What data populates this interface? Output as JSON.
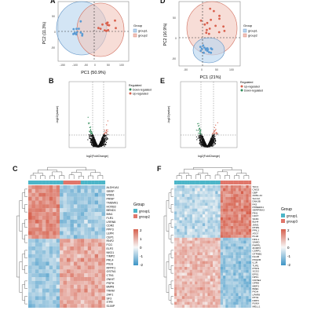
{
  "panels": {
    "a": {
      "letter": "A"
    },
    "b": {
      "letter": "B"
    },
    "c": {
      "letter": "C"
    },
    "d": {
      "letter": "D"
    },
    "e": {
      "letter": "E"
    },
    "f": {
      "letter": "F"
    }
  },
  "pca_left": {
    "xlabel": "PC1 (50.9%)",
    "ylabel": "PC2 (11.3%)",
    "x_ticks": [
      "-150",
      "-100",
      "-50",
      "0",
      "50",
      "100"
    ],
    "y_ticks": [
      "50",
      "0",
      "-50"
    ],
    "legend_title": "Group",
    "legend": [
      "group1",
      "group2"
    ]
  },
  "pca_right": {
    "xlabel": "PC1 (21%)",
    "ylabel": "PC2 (16.9%)",
    "x_ticks": [
      "-50",
      "0",
      "50",
      "100"
    ],
    "y_ticks": [
      "50",
      "0",
      "-50"
    ],
    "legend_title": "Group",
    "legend": [
      "group1",
      "group2"
    ]
  },
  "volcano_left": {
    "xlabel": "log2(FoldChange)",
    "ylabel": "-log10(pvalue)",
    "legend_title": "Regulated",
    "legend": [
      "Down-regulated",
      "Up-regulated"
    ]
  },
  "volcano_right": {
    "xlabel": "log2(FoldChange)",
    "ylabel": "-log10(pvalue)",
    "legend_title": "Regulated",
    "legend": [
      "Up-regulated",
      "Down-regulated"
    ]
  },
  "heatmap_left": {
    "legend_group_title": "Group",
    "legend_groups": [
      "group1",
      "group2"
    ],
    "scale_ticks": [
      "2",
      "1",
      "0",
      "-1",
      "-2"
    ],
    "genes": [
      "ALDH1A1",
      "SRRP",
      "WSB1",
      "PRNP",
      "TMEM91",
      "HOXB3",
      "BEND1",
      "BIN1",
      "FLR1",
      "LRRN5",
      "CDR2",
      "PPP3",
      "LEPR",
      "CEP1",
      "RNF2",
      "FCG",
      "ELP2",
      "NKD1",
      "TIMP2",
      "PRL4",
      "PIGS",
      "RPPF1",
      "GSTN1",
      "CTN1",
      "ZNHIT",
      "PSPH",
      "BMP8",
      "TRAM",
      "ZAF1",
      "SF3",
      "ITPR",
      "S100P"
    ],
    "colors": {
      "group1": "#4cb5c8",
      "group2": "#e0766a",
      "high": "#d6604d",
      "mid": "#f7f7f7",
      "low": "#3d95c6"
    }
  },
  "heatmap_right": {
    "legend_group_title": "Group",
    "legend_groups": [
      "group1",
      "group3"
    ],
    "scale_ticks": [
      "2",
      "1",
      "0",
      "-1",
      "-2"
    ],
    "genes": [
      "TAC1",
      "CNO2",
      "GBP",
      "AKB1-44",
      "SLC12",
      "DNAJB",
      "FAS",
      "PRNEES1",
      "SERPINA3",
      "PIN1",
      "CFFT",
      "SF4N",
      "BLH4",
      "JAM1",
      "RTMS",
      "PPIL1",
      "ATG7",
      "PL1R",
      "NFIL1",
      "SAMD",
      "RHPPL",
      "ZCMP3",
      "CSRP1",
      "OTP8B1",
      "DLGB",
      "PDGFB",
      "IL1R",
      "TUR1",
      "PHFN",
      "SCO2",
      "EPS1",
      "NPF1",
      "OOHE2",
      "GPR8",
      "MEP3",
      "BRE1",
      "PIGH",
      "LPAR8",
      "RTN1",
      "DRP3",
      "RUNX",
      "MELL1"
    ],
    "colors": {
      "group1": "#4cb5c8",
      "group3": "#e0766a"
    }
  }
}
